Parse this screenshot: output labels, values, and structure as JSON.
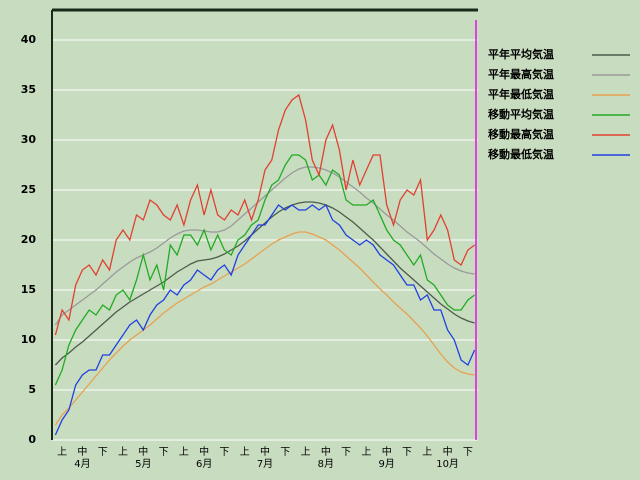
{
  "chart_data": {
    "type": "line",
    "categories": [
      null,
      "上",
      null,
      null,
      "中",
      null,
      null,
      "下",
      null,
      null,
      "上",
      null,
      null,
      "中",
      null,
      null,
      "下",
      null,
      null,
      "上",
      null,
      null,
      "中",
      null,
      null,
      "下",
      null,
      null,
      "上",
      null,
      null,
      "中",
      null,
      null,
      "下",
      null,
      null,
      "上",
      null,
      null,
      "中",
      null,
      null,
      "下",
      null,
      null,
      "上",
      null,
      null,
      "中",
      null,
      null,
      "下",
      null,
      null,
      "上",
      null,
      null,
      "中",
      null,
      null,
      "下",
      null
    ],
    "months": [
      "4月",
      "5月",
      "6月",
      "7月",
      "8月",
      "9月",
      "10月"
    ],
    "ylim": [
      0,
      43
    ],
    "yticks": [
      0,
      5,
      10,
      15,
      20,
      25,
      30,
      35,
      40
    ],
    "grid": true,
    "series": [
      {
        "name": "平年平均気温",
        "color": "#4b5b4b",
        "values": [
          7.5,
          8.2,
          8.7,
          9.3,
          9.8,
          10.4,
          11.0,
          11.6,
          12.2,
          12.8,
          13.3,
          13.8,
          14.2,
          14.6,
          15.0,
          15.4,
          15.8,
          16.3,
          16.8,
          17.2,
          17.6,
          17.9,
          18.0,
          18.1,
          18.3,
          18.6,
          19.0,
          19.4,
          19.9,
          20.5,
          21.1,
          21.7,
          22.3,
          22.8,
          23.2,
          23.5,
          23.7,
          23.8,
          23.8,
          23.7,
          23.5,
          23.2,
          22.8,
          22.3,
          21.8,
          21.2,
          20.6,
          20.0,
          19.3,
          18.6,
          17.9,
          17.2,
          16.6,
          16.0,
          15.4,
          14.8,
          14.2,
          13.6,
          13.1,
          12.6,
          12.2,
          11.9,
          11.7
        ]
      },
      {
        "name": "平年最高気温",
        "color": "#999999",
        "values": [
          11.5,
          12.5,
          13.0,
          13.5,
          14.0,
          14.5,
          15.0,
          15.6,
          16.2,
          16.8,
          17.3,
          17.8,
          18.2,
          18.5,
          18.8,
          19.2,
          19.7,
          20.2,
          20.6,
          20.9,
          21.0,
          21.0,
          20.9,
          20.8,
          20.8,
          21.0,
          21.4,
          22.0,
          22.6,
          23.2,
          23.8,
          24.4,
          25.0,
          25.6,
          26.2,
          26.7,
          27.1,
          27.3,
          27.3,
          27.2,
          27.0,
          26.7,
          26.3,
          25.8,
          25.3,
          24.8,
          24.2,
          23.7,
          23.1,
          22.5,
          22.0,
          21.4,
          20.8,
          20.3,
          19.8,
          19.2,
          18.6,
          18.1,
          17.6,
          17.2,
          16.9,
          16.7,
          16.6
        ]
      },
      {
        "name": "平年最低気温",
        "color": "#e8a050",
        "values": [
          1.5,
          2.5,
          3.2,
          4.0,
          4.8,
          5.6,
          6.4,
          7.2,
          8.0,
          8.7,
          9.4,
          10.0,
          10.5,
          11.0,
          11.5,
          12.1,
          12.7,
          13.2,
          13.7,
          14.1,
          14.5,
          14.9,
          15.3,
          15.6,
          16.0,
          16.4,
          16.8,
          17.2,
          17.6,
          18.1,
          18.6,
          19.1,
          19.6,
          20.0,
          20.3,
          20.6,
          20.8,
          20.8,
          20.6,
          20.3,
          20.0,
          19.5,
          19.0,
          18.4,
          17.8,
          17.2,
          16.5,
          15.8,
          15.1,
          14.5,
          13.8,
          13.2,
          12.6,
          11.9,
          11.2,
          10.4,
          9.5,
          8.6,
          7.8,
          7.2,
          6.8,
          6.6,
          6.5
        ]
      },
      {
        "name": "移動平均気温",
        "color": "#22aa22",
        "values": [
          5.5,
          7,
          9.5,
          11,
          12,
          13,
          12.5,
          13.5,
          13,
          14.5,
          15,
          14,
          16,
          18.5,
          16,
          17.5,
          15,
          19.5,
          18.5,
          20.5,
          20.5,
          19.5,
          21,
          19,
          20.5,
          19,
          18.5,
          20,
          20.5,
          21.5,
          22,
          24,
          25.5,
          26,
          27.5,
          28.5,
          28.5,
          28,
          26,
          26.5,
          25.5,
          27,
          26.5,
          24,
          23.5,
          23.5,
          23.5,
          24,
          22.5,
          21,
          20,
          19.5,
          18.5,
          17.5,
          18.5,
          16,
          15.5,
          14.5,
          13.5,
          13,
          13,
          14,
          14.5
        ]
      },
      {
        "name": "移動最高気温",
        "color": "#e04030",
        "values": [
          10.5,
          13,
          12,
          15.5,
          17,
          17.5,
          16.5,
          18,
          17,
          20,
          21,
          20,
          22.5,
          22,
          24,
          23.5,
          22.5,
          22,
          23.5,
          21.5,
          24,
          25.5,
          22.5,
          25,
          22.5,
          22,
          23,
          22.5,
          24,
          22,
          24,
          27,
          28,
          31,
          33,
          34,
          34.5,
          32,
          28,
          26.5,
          30,
          31.5,
          29,
          25,
          28,
          25.5,
          27,
          28.5,
          28.5,
          23.5,
          21.5,
          24,
          25,
          24.5,
          26,
          20,
          21,
          22.5,
          21,
          18,
          17.5,
          19,
          19.5
        ]
      },
      {
        "name": "移動最低気温",
        "color": "#2040e0",
        "values": [
          0.5,
          2,
          3,
          5.5,
          6.5,
          7,
          7,
          8.5,
          8.5,
          9.5,
          10.5,
          11.5,
          12,
          11,
          12.5,
          13.5,
          14,
          15,
          14.5,
          15.5,
          16,
          17,
          16.5,
          16,
          17,
          17.5,
          16.5,
          18.5,
          19.5,
          20.5,
          21.5,
          21.5,
          22.5,
          23.5,
          23,
          23.5,
          23,
          23,
          23.5,
          23,
          23.5,
          22,
          21.5,
          20.5,
          20,
          19.5,
          20,
          19.5,
          18.5,
          18,
          17.5,
          16.5,
          15.5,
          15.5,
          14,
          14.5,
          13,
          13,
          11,
          10,
          8,
          7.5,
          9
        ]
      }
    ]
  }
}
